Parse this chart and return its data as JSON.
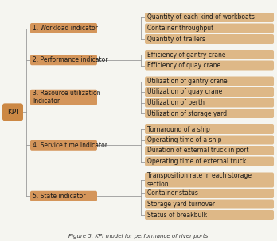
{
  "title": "Figure 5. KPI model for performance of river ports",
  "root": "KPI",
  "root_color": "#CC8844",
  "category_color": "#D4955A",
  "leaf_color": "#DEB887",
  "bg_color": "#F5F5F0",
  "categories": [
    {
      "name": "1. Workload indicator",
      "leaves": [
        "Quantity of each kind of workboats",
        "Container throughput",
        "Quantity of trailers"
      ]
    },
    {
      "name": "2. Performance indicator",
      "leaves": [
        "Efficiency of gantry crane",
        "Efficiency of quay crane"
      ]
    },
    {
      "name": "3. Resource utilization\nIndicator",
      "leaves": [
        "Utilization of gantry crane",
        "Utilization of quay crane",
        "Utilization of berth",
        "Utilization of storage yard"
      ]
    },
    {
      "name": "4. Service time Indicator",
      "leaves": [
        "Turnaround of a ship",
        "Operating time of a ship",
        "Duration of external truck in port",
        "Operating time of external truck"
      ]
    },
    {
      "name": "5. State indicator",
      "leaves": [
        "Transposition rate in each storage\nsection",
        "Container status",
        "Storage yard turnover",
        "Status of breakbulk"
      ]
    }
  ],
  "line_color": "#999999",
  "text_color": "#1A1A1A",
  "title_fontsize": 5.0,
  "cat_fontsize": 5.5,
  "leaf_fontsize": 5.5,
  "root_fontsize": 6.5
}
